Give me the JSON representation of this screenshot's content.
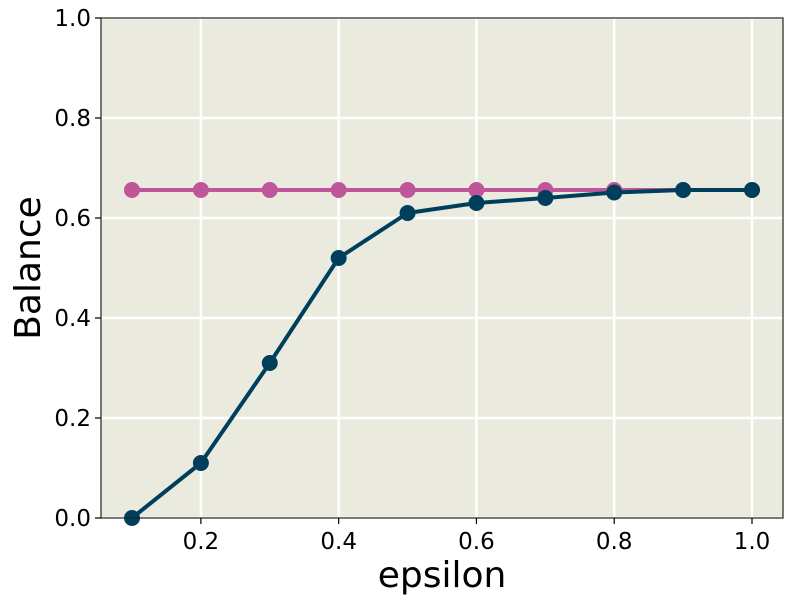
{
  "chart_data": {
    "type": "line",
    "title": "",
    "xlabel": "epsilon",
    "ylabel": "Balance",
    "xlim": [
      0.055,
      1.045
    ],
    "ylim": [
      0.0,
      1.0
    ],
    "xticks": [
      0.2,
      0.4,
      0.6,
      0.8,
      1.0
    ],
    "xtick_labels": [
      "0.2",
      "0.4",
      "0.6",
      "0.8",
      "1.0"
    ],
    "yticks": [
      0.0,
      0.2,
      0.4,
      0.6,
      0.8,
      1.0
    ],
    "ytick_labels": [
      "0.0",
      "0.2",
      "0.4",
      "0.6",
      "0.8",
      "1.0"
    ],
    "grid": true,
    "legend": "none",
    "background_color": "#EBEADF",
    "grid_color": "#FFFFFF",
    "series": [
      {
        "color": "#C0569A",
        "x": [
          0.1,
          0.2,
          0.3,
          0.4,
          0.5,
          0.6,
          0.7,
          0.8,
          0.9,
          1.0
        ],
        "y": [
          0.656,
          0.656,
          0.656,
          0.656,
          0.656,
          0.656,
          0.656,
          0.656,
          0.656,
          0.656
        ]
      },
      {
        "color": "#003F5C",
        "x": [
          0.1,
          0.2,
          0.3,
          0.4,
          0.5,
          0.6,
          0.7,
          0.8,
          0.9,
          1.0
        ],
        "y": [
          0.0,
          0.11,
          0.31,
          0.52,
          0.61,
          0.63,
          0.64,
          0.651,
          0.656,
          0.656
        ]
      }
    ]
  }
}
